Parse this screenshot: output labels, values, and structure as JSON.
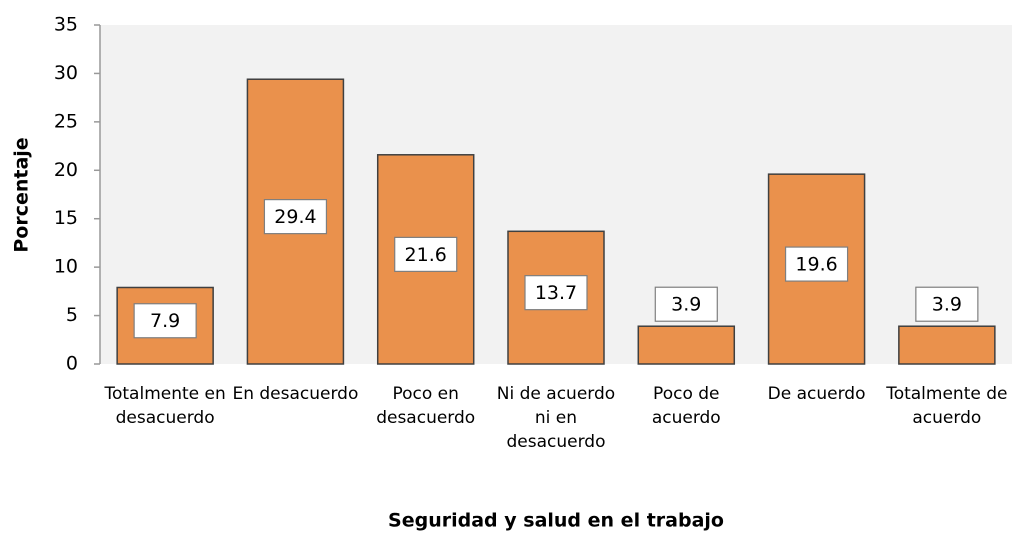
{
  "chart_data": {
    "type": "bar",
    "x_label": "Seguridad y salud en el trabajo",
    "y_label": "Porcentaje",
    "categories": [
      "Totalmente en desacuerdo",
      "En desacuerdo",
      "Poco en desacuerdo",
      "Ni de acuerdo ni en desacuerdo",
      "Poco de acuerdo",
      "De acuerdo",
      "Totalmente de acuerdo"
    ],
    "values": [
      7.9,
      29.4,
      21.6,
      13.7,
      3.9,
      19.6,
      3.9
    ],
    "color": "#ea914c",
    "ylim": [
      0,
      35
    ],
    "yticks": [
      0,
      5,
      10,
      15,
      20,
      25,
      30,
      35
    ]
  }
}
